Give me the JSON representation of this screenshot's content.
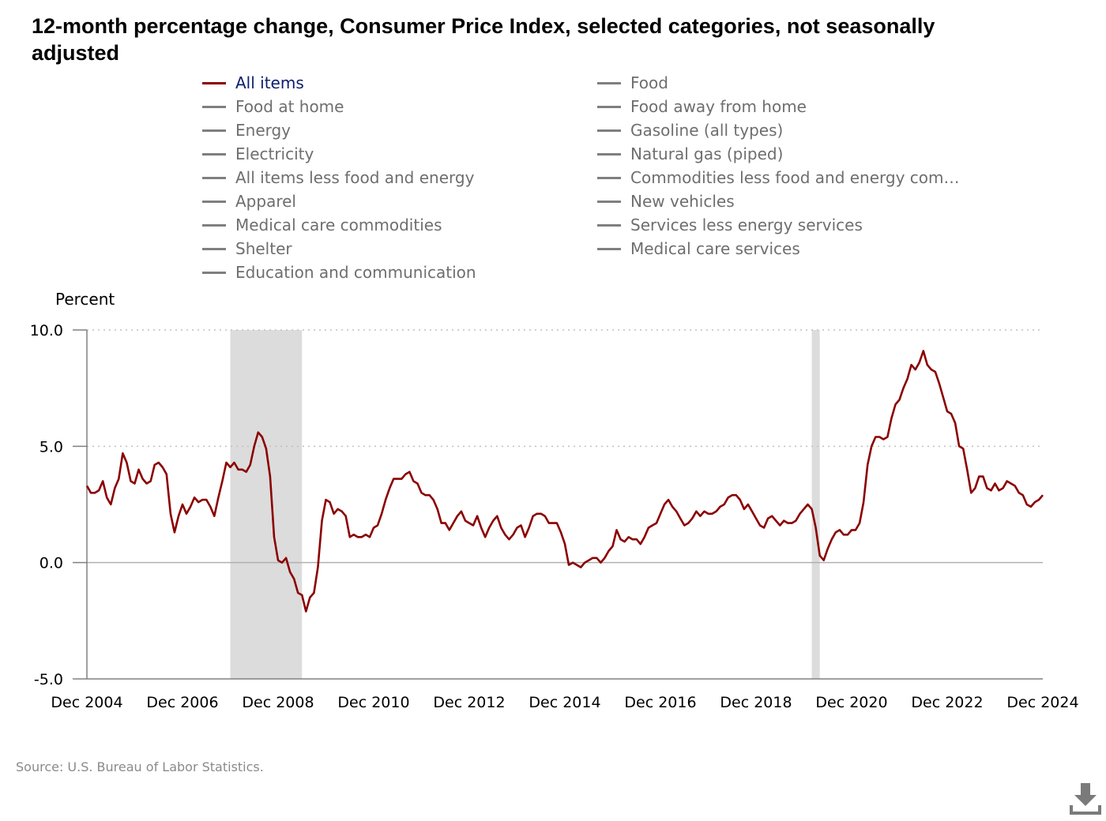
{
  "title": "12-month percentage change, Consumer Price Index, selected categories, not seasonally adjusted",
  "legend": {
    "items": [
      {
        "label": "All items",
        "active": true
      },
      {
        "label": "Food",
        "active": false
      },
      {
        "label": "Food at home",
        "active": false
      },
      {
        "label": "Food away from home",
        "active": false
      },
      {
        "label": "Energy",
        "active": false
      },
      {
        "label": "Gasoline (all types)",
        "active": false
      },
      {
        "label": "Electricity",
        "active": false
      },
      {
        "label": "Natural gas (piped)",
        "active": false
      },
      {
        "label": "All items less food and energy",
        "active": false
      },
      {
        "label": "Commodities less food and energy com…",
        "active": false
      },
      {
        "label": "Apparel",
        "active": false
      },
      {
        "label": "New vehicles",
        "active": false
      },
      {
        "label": "Medical care commodities",
        "active": false
      },
      {
        "label": "Services less energy services",
        "active": false
      },
      {
        "label": "Shelter",
        "active": false
      },
      {
        "label": "Medical care services",
        "active": false
      },
      {
        "label": "Education and communication",
        "active": false
      }
    ]
  },
  "source": "Source: U.S. Bureau of Labor Statistics.",
  "download_icon": "download-icon",
  "colors": {
    "series": "#8b0000",
    "legend_inactive": "#7f7f7f",
    "legend_active_text": "#0b1e6e",
    "recession": "#dcdcdc",
    "grid": "#c0c0c0",
    "axis": "#808080"
  },
  "chart_data": {
    "type": "line",
    "title": "12-month percentage change, Consumer Price Index, selected categories, not seasonally adjusted",
    "xlabel": "",
    "ylabel": "Percent",
    "x_start": "Dec 2004",
    "x_end": "Dec 2024",
    "frequency": "monthly",
    "ylim": [
      -5.0,
      10.0
    ],
    "y_ticks": [
      {
        "value": 10.0,
        "label": "10.0"
      },
      {
        "value": 5.0,
        "label": "5.0"
      },
      {
        "value": 0.0,
        "label": "0.0"
      },
      {
        "value": -5.0,
        "label": "-5.0"
      }
    ],
    "x_ticks": [
      {
        "month_index": 0,
        "label": "Dec 2004"
      },
      {
        "month_index": 24,
        "label": "Dec 2006"
      },
      {
        "month_index": 48,
        "label": "Dec 2008"
      },
      {
        "month_index": 72,
        "label": "Dec 2010"
      },
      {
        "month_index": 96,
        "label": "Dec 2012"
      },
      {
        "month_index": 120,
        "label": "Dec 2014"
      },
      {
        "month_index": 144,
        "label": "Dec 2016"
      },
      {
        "month_index": 168,
        "label": "Dec 2018"
      },
      {
        "month_index": 192,
        "label": "Dec 2020"
      },
      {
        "month_index": 216,
        "label": "Dec 2022"
      },
      {
        "month_index": 240,
        "label": "Dec 2024"
      }
    ],
    "grid": true,
    "recession_bands": [
      {
        "start": "Dec 2007",
        "end": "Jun 2009"
      },
      {
        "start": "Feb 2020",
        "end": "Apr 2020"
      }
    ],
    "series": [
      {
        "name": "All items",
        "values": [
          3.3,
          3.0,
          3.0,
          3.1,
          3.5,
          2.8,
          2.5,
          3.2,
          3.6,
          4.7,
          4.3,
          3.5,
          3.4,
          4.0,
          3.6,
          3.4,
          3.5,
          4.2,
          4.3,
          4.1,
          3.8,
          2.1,
          1.3,
          2.0,
          2.5,
          2.1,
          2.4,
          2.8,
          2.6,
          2.7,
          2.7,
          2.4,
          2.0,
          2.8,
          3.5,
          4.3,
          4.1,
          4.3,
          4.0,
          4.0,
          3.9,
          4.2,
          5.0,
          5.6,
          5.4,
          4.9,
          3.7,
          1.1,
          0.1,
          0.0,
          0.2,
          -0.4,
          -0.7,
          -1.3,
          -1.4,
          -2.1,
          -1.5,
          -1.3,
          -0.2,
          1.8,
          2.7,
          2.6,
          2.1,
          2.3,
          2.2,
          2.0,
          1.1,
          1.2,
          1.1,
          1.1,
          1.2,
          1.1,
          1.5,
          1.6,
          2.1,
          2.7,
          3.2,
          3.6,
          3.6,
          3.6,
          3.8,
          3.9,
          3.5,
          3.4,
          3.0,
          2.9,
          2.9,
          2.7,
          2.3,
          1.7,
          1.7,
          1.4,
          1.7,
          2.0,
          2.2,
          1.8,
          1.7,
          1.6,
          2.0,
          1.5,
          1.1,
          1.5,
          1.8,
          2.0,
          1.5,
          1.2,
          1.0,
          1.2,
          1.5,
          1.6,
          1.1,
          1.5,
          2.0,
          2.1,
          2.1,
          2.0,
          1.7,
          1.7,
          1.7,
          1.3,
          0.8,
          -0.1,
          0.0,
          -0.1,
          -0.2,
          0.0,
          0.1,
          0.2,
          0.2,
          0.0,
          0.2,
          0.5,
          0.7,
          1.4,
          1.0,
          0.9,
          1.1,
          1.0,
          1.0,
          0.8,
          1.1,
          1.5,
          1.6,
          1.7,
          2.1,
          2.5,
          2.7,
          2.4,
          2.2,
          1.9,
          1.6,
          1.7,
          1.9,
          2.2,
          2.0,
          2.2,
          2.1,
          2.1,
          2.2,
          2.4,
          2.5,
          2.8,
          2.9,
          2.9,
          2.7,
          2.3,
          2.5,
          2.2,
          1.9,
          1.6,
          1.5,
          1.9,
          2.0,
          1.8,
          1.6,
          1.8,
          1.7,
          1.7,
          1.8,
          2.1,
          2.3,
          2.5,
          2.3,
          1.5,
          0.3,
          0.1,
          0.6,
          1.0,
          1.3,
          1.4,
          1.2,
          1.2,
          1.4,
          1.4,
          1.7,
          2.6,
          4.2,
          5.0,
          5.4,
          5.4,
          5.3,
          5.4,
          6.2,
          6.8,
          7.0,
          7.5,
          7.9,
          8.5,
          8.3,
          8.6,
          9.1,
          8.5,
          8.3,
          8.2,
          7.7,
          7.1,
          6.5,
          6.4,
          6.0,
          5.0,
          4.9,
          4.0,
          3.0,
          3.2,
          3.7,
          3.7,
          3.2,
          3.1,
          3.4,
          3.1,
          3.2,
          3.5,
          3.4,
          3.3,
          3.0,
          2.9,
          2.5,
          2.4,
          2.6,
          2.7,
          2.9
        ]
      }
    ]
  }
}
